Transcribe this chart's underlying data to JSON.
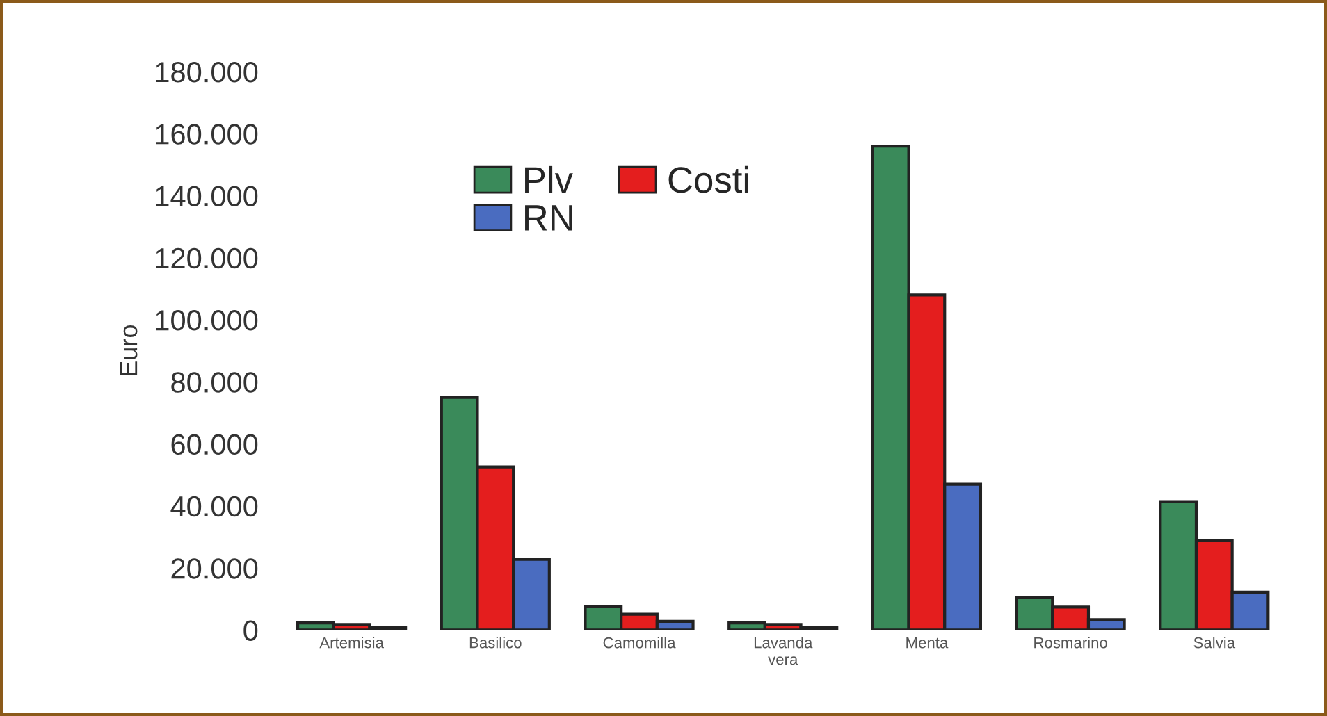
{
  "chart_data": {
    "type": "bar",
    "ylabel": "Euro",
    "categories": [
      "Artemisia",
      "Basilico",
      "Camomilla",
      "Lavanda\nvera",
      "Menta",
      "Rosmarino",
      "Salvia"
    ],
    "series": [
      {
        "name": "Plv",
        "color": "#3a8a5a",
        "values": [
          2300,
          75000,
          7600,
          2300,
          156000,
          10400,
          41400
        ]
      },
      {
        "name": "Costi",
        "color": "#e41e1e",
        "values": [
          1800,
          52600,
          5100,
          1800,
          108000,
          7400,
          29000
        ]
      },
      {
        "name": "RN",
        "color": "#4a6cc0",
        "values": [
          900,
          22800,
          2800,
          900,
          47000,
          3400,
          12200
        ]
      }
    ],
    "ylim": [
      0,
      180000
    ],
    "yticks": [
      0,
      {
        "value": 20000,
        "label": "20.000"
      },
      {
        "value": 40000,
        "label": "40.000"
      },
      {
        "value": 60000,
        "label": "60.000"
      },
      {
        "value": 80000,
        "label": "80.000"
      },
      {
        "value": 100000,
        "label": "100.000"
      },
      {
        "value": 120000,
        "label": "120.000"
      },
      {
        "value": 140000,
        "label": "140.000"
      },
      {
        "value": 160000,
        "label": "160.000"
      },
      {
        "value": 180000,
        "label": "180.000"
      }
    ],
    "grid": false,
    "legend": "top left"
  }
}
